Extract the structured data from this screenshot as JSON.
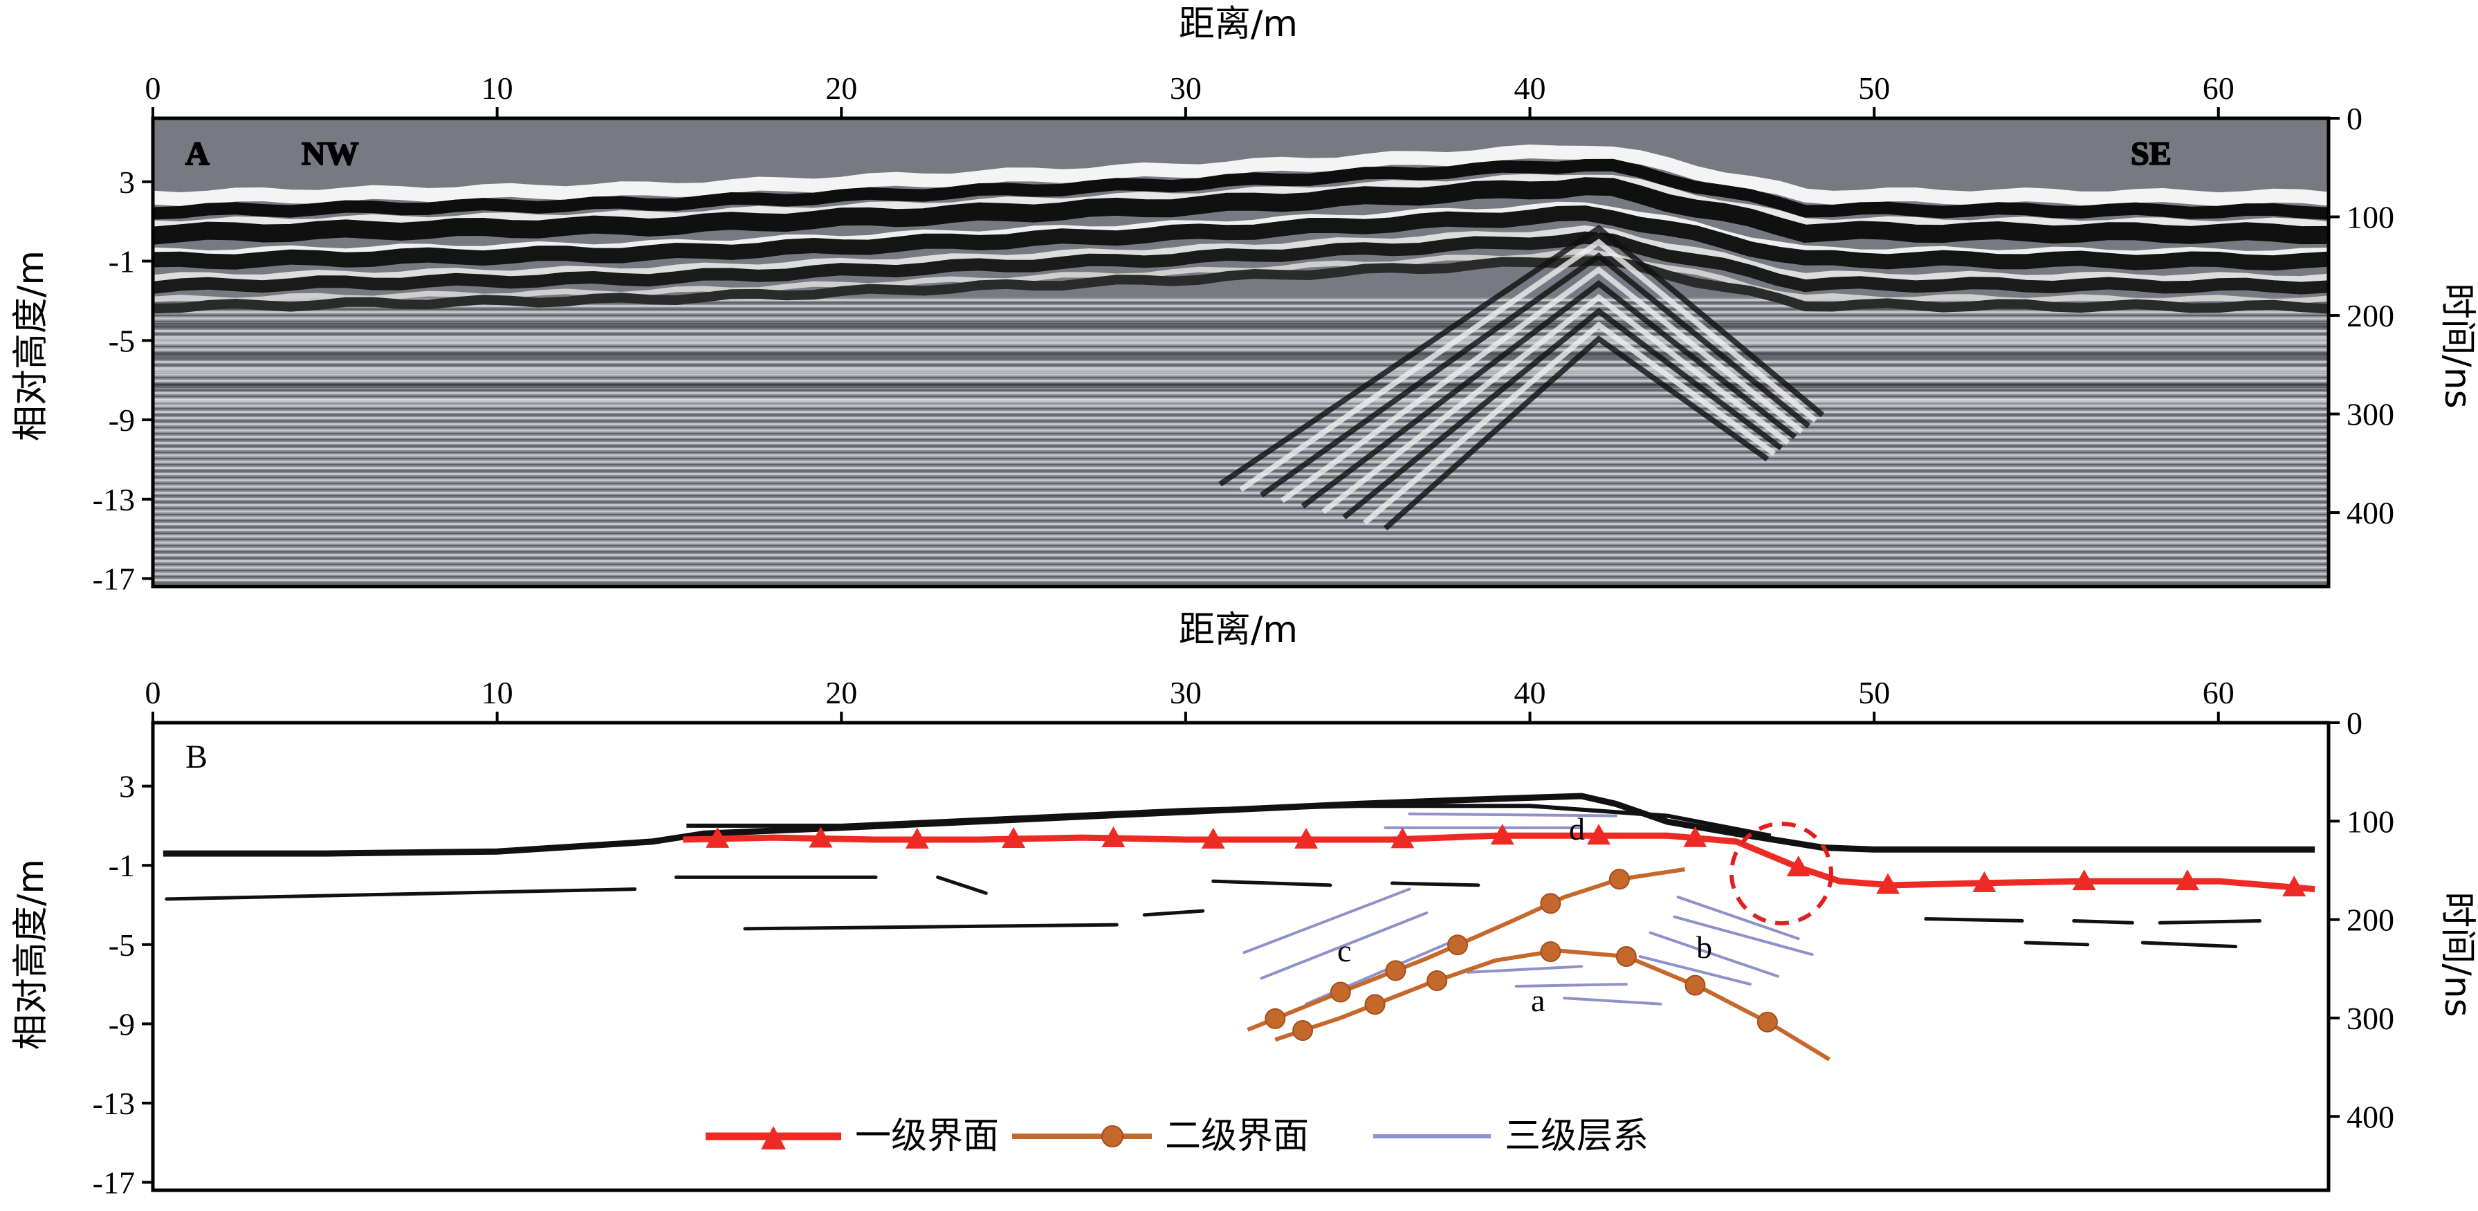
{
  "chart_data": [
    {
      "type": "radargram",
      "panel_label": "A",
      "xlabel": "距离/m",
      "ylabel_left": "相对高度/m",
      "ylabel_right": "时间/ns",
      "x_ticks": [
        "0",
        "10",
        "20",
        "30",
        "40",
        "50",
        "60"
      ],
      "y_left_ticks": [
        "3",
        "-1",
        "-5",
        "-9",
        "-13",
        "-17"
      ],
      "y_right_ticks": [
        "0",
        "100",
        "200",
        "300",
        "400"
      ],
      "xlim": [
        0,
        63.2
      ],
      "y_left_range": [
        6.2,
        -17.4
      ],
      "y_right_range": [
        0,
        475
      ],
      "annotations": [
        "NW",
        "SE"
      ],
      "surface_profile": {
        "x": [
          0,
          14.5,
          30,
          42,
          48,
          63.2
        ],
        "y": [
          2.2,
          2.6,
          3.6,
          4.6,
          2.3,
          2.2
        ]
      },
      "colors": {
        "background": "#7a7d86",
        "stripe_dark": "#111111",
        "stripe_light": "#f2f2f2"
      }
    },
    {
      "type": "line",
      "panel_label": "B",
      "xlabel": "距离/m",
      "ylabel_left": "相对高度/m",
      "ylabel_right": "时间/ns",
      "x_ticks": [
        "0",
        "10",
        "20",
        "30",
        "40",
        "50",
        "60"
      ],
      "y_left_ticks": [
        "3",
        "-1",
        "-5",
        "-9",
        "-13",
        "-17"
      ],
      "y_right_ticks": [
        "0",
        "100",
        "200",
        "300",
        "400"
      ],
      "xlim": [
        0,
        63.2
      ],
      "y_left_range": [
        6.2,
        -17.4
      ],
      "y_right_range": [
        0,
        475
      ],
      "labels": [
        "a",
        "b",
        "c",
        "d"
      ],
      "legend": [
        {
          "name": "一级界面",
          "color": "#ee2a24",
          "marker": "triangle"
        },
        {
          "name": "二级界面",
          "color": "#c5682b",
          "marker": "circle"
        },
        {
          "name": "三级层系",
          "color": "#8e92c9",
          "marker": "none"
        }
      ],
      "surface": {
        "x": [
          0.3,
          5,
          10,
          14.5,
          16,
          20,
          25,
          30,
          35,
          38,
          41.5,
          42.5,
          44,
          46,
          48.5,
          50,
          55,
          60,
          62.8
        ],
        "y": [
          -0.4,
          -0.4,
          -0.3,
          0.2,
          0.6,
          0.9,
          1.3,
          1.7,
          2.1,
          2.3,
          2.5,
          2.1,
          1.2,
          0.6,
          -0.1,
          -0.2,
          -0.2,
          -0.2,
          -0.2
        ]
      },
      "level1": {
        "x": [
          15.4,
          18,
          21,
          24,
          27,
          30,
          33,
          36,
          39,
          42,
          44,
          46,
          47.8,
          49,
          50.5,
          53,
          56,
          60,
          62.8
        ],
        "y": [
          0.3,
          0.4,
          0.3,
          0.3,
          0.4,
          0.3,
          0.3,
          0.3,
          0.5,
          0.5,
          0.5,
          0.2,
          -1.1,
          -1.8,
          -2.0,
          -1.9,
          -1.8,
          -1.8,
          -2.2
        ],
        "markers_x": [
          16.4,
          19.4,
          22.2,
          25,
          27.9,
          30.8,
          33.5,
          36.3,
          39.2,
          42,
          44.8,
          47.8,
          50.4,
          53.2,
          56.1,
          59.1,
          62.2
        ]
      },
      "level2_upper": {
        "x": [
          31.8,
          34.5,
          37,
          39.5,
          41,
          42.6,
          44.5
        ],
        "y": [
          -9.3,
          -7.4,
          -5.7,
          -3.8,
          -2.6,
          -1.7,
          -1.2
        ],
        "markers_x": [
          32.6,
          34.5,
          36.1,
          37.9,
          40.6,
          42.6
        ]
      },
      "level2_lower": {
        "x": [
          32.6,
          34.5,
          37,
          39,
          40.8,
          42.8,
          45,
          47,
          48.7
        ],
        "y": [
          -9.8,
          -8.7,
          -7.0,
          -5.8,
          -5.3,
          -5.6,
          -7.2,
          -9.0,
          -10.8
        ],
        "markers_x": [
          33.4,
          35.5,
          37.3,
          40.6,
          42.8,
          44.8,
          46.9
        ]
      }
    }
  ]
}
